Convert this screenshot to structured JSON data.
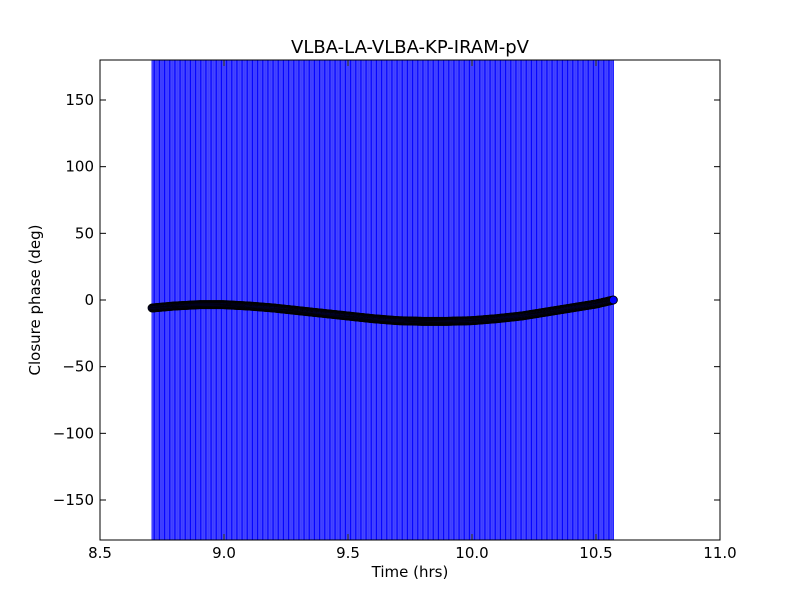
{
  "chart_data": {
    "type": "scatter",
    "title": "VLBA-LA-VLBA-KP-IRAM-pV",
    "xlabel": "Time (hrs)",
    "ylabel": "Closure phase (deg)",
    "xlim": [
      8.5,
      11.0
    ],
    "ylim": [
      -180,
      180
    ],
    "xticks": [
      8.5,
      9.0,
      9.5,
      10.0,
      10.5,
      11.0
    ],
    "xtick_labels": [
      "8.5",
      "9.0",
      "9.5",
      "10.0",
      "10.5",
      "11.0"
    ],
    "yticks": [
      -150,
      -100,
      -50,
      0,
      50,
      100,
      150
    ],
    "ytick_labels": [
      "−150",
      "−100",
      "−50",
      "0",
      "50",
      "100",
      "150"
    ],
    "grid": false,
    "colors": {
      "error_bar": "#0000ff",
      "marker_fill": "#0000ff",
      "marker_edge": "#000000"
    },
    "series": [
      {
        "x": [
          8.71,
          8.8,
          8.9,
          9.0,
          9.1,
          9.2,
          9.3,
          9.4,
          9.5,
          9.6,
          9.7,
          9.8,
          9.9,
          10.0,
          10.1,
          10.2,
          10.3,
          10.4,
          10.5,
          10.57
        ],
        "y": [
          -6,
          -4.5,
          -3.5,
          -3.5,
          -4.5,
          -6,
          -8,
          -10,
          -12,
          -14,
          -15.5,
          -16,
          -16,
          -15.5,
          -14,
          -12,
          -9,
          -6,
          -3,
          0
        ],
        "yerr_low": -180,
        "yerr_high": 180
      }
    ]
  }
}
